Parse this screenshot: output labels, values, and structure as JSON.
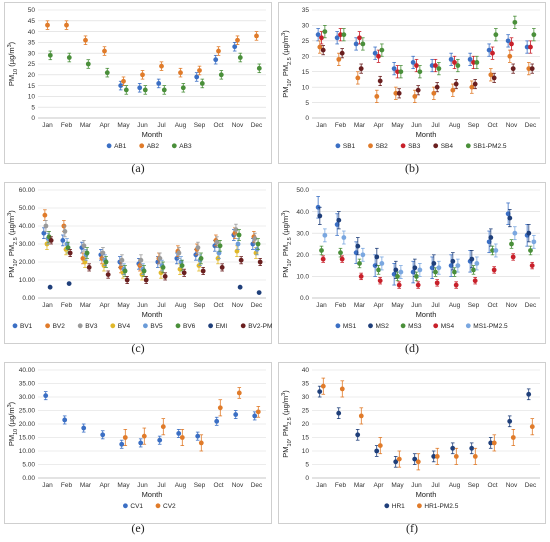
{
  "months": [
    "Jan",
    "Feb",
    "Mar",
    "Apr",
    "May",
    "Jun",
    "Jul",
    "Aug",
    "Sep",
    "Oct",
    "Nov",
    "Dec"
  ],
  "chart_data": [
    {
      "type": "scatter",
      "panel_label": "(a)",
      "xlabel": "Month",
      "ylabel": "PM10 (µg/m3)",
      "ylim": [
        0,
        50
      ],
      "yticks": [
        "0",
        "5",
        "10",
        "15",
        "20",
        "25",
        "30",
        "35",
        "40",
        "45",
        "50"
      ],
      "grid": true,
      "series": [
        {
          "name": "AB1",
          "color": "#3b6fc4",
          "values": [
            null,
            null,
            null,
            null,
            15,
            14,
            16,
            null,
            19,
            27,
            33,
            null
          ],
          "err": [
            null,
            null,
            null,
            null,
            2,
            2,
            2,
            null,
            2,
            2,
            2,
            null
          ]
        },
        {
          "name": "AB2",
          "color": "#e07b2a",
          "values": [
            43,
            43,
            36,
            31,
            17,
            20,
            24,
            21,
            22,
            31,
            36,
            38
          ],
          "err": [
            2,
            2,
            2,
            2,
            2,
            2,
            2,
            2,
            2,
            2,
            2,
            2
          ]
        },
        {
          "name": "AB3",
          "color": "#4a8f3a",
          "values": [
            29,
            28,
            25,
            21,
            13,
            13,
            13,
            14,
            16,
            20,
            28,
            23
          ],
          "err": [
            2,
            2,
            2,
            2,
            2,
            2,
            2,
            2,
            2,
            2,
            2,
            2
          ]
        }
      ]
    },
    {
      "type": "scatter",
      "panel_label": "(b)",
      "xlabel": "Month",
      "ylabel": "PM10, PM2.5 (µg/m3)",
      "ylim": [
        0,
        35
      ],
      "yticks": [
        "0",
        "5",
        "10",
        "15",
        "20",
        "25",
        "30",
        "35"
      ],
      "grid": true,
      "series": [
        {
          "name": "SB1",
          "color": "#3b6fc4",
          "values": [
            27,
            26,
            24,
            21,
            16,
            18,
            17,
            19,
            19,
            22,
            25,
            23
          ],
          "err": [
            2,
            2,
            2,
            2,
            2,
            2,
            2,
            2,
            2,
            2,
            2,
            2
          ]
        },
        {
          "name": "SB2",
          "color": "#e07b2a",
          "values": [
            23,
            19,
            13,
            7,
            8,
            7,
            8,
            9,
            10,
            14,
            20,
            16
          ],
          "err": [
            2,
            2,
            2,
            2,
            2,
            2,
            2,
            2,
            2,
            2,
            2,
            2
          ]
        },
        {
          "name": "SB3",
          "color": "#c8202a",
          "values": [
            26,
            27,
            26,
            20,
            15,
            17,
            17,
            18,
            18,
            21,
            24,
            23
          ],
          "err": [
            2,
            2,
            2,
            2,
            2,
            2,
            2,
            2,
            2,
            2,
            2,
            2
          ]
        },
        {
          "name": "SB4",
          "color": "#6a1f1f",
          "values": [
            22,
            21,
            16,
            12,
            8,
            9,
            10,
            11,
            11,
            13,
            16,
            16
          ],
          "err": [
            1.5,
            1.5,
            1.5,
            1.5,
            1.5,
            1.5,
            1.5,
            1.5,
            1.5,
            1.5,
            1.5,
            1.5
          ]
        },
        {
          "name": "SB1-PM2.5",
          "color": "#4a8f3a",
          "values": [
            28,
            27,
            24,
            22,
            15,
            15,
            16,
            17,
            18,
            27,
            31,
            27
          ],
          "err": [
            2,
            2,
            2,
            2,
            2,
            2,
            2,
            2,
            2,
            2,
            2,
            2
          ]
        }
      ]
    },
    {
      "type": "scatter",
      "panel_label": "(c)",
      "xlabel": "Month",
      "ylabel": "PM10, PM2.5 (µg/m3)",
      "ylim": [
        0,
        60
      ],
      "yticks": [
        "0.00",
        "10.00",
        "20.00",
        "30.00",
        "40.00",
        "50.00",
        "60.00"
      ],
      "grid": true,
      "series": [
        {
          "name": "BV1",
          "color": "#3b6fc4",
          "values": [
            36,
            32,
            28,
            24,
            20,
            19,
            20,
            22,
            24,
            29,
            35,
            30
          ],
          "err": [
            3,
            3,
            3,
            3,
            3,
            3,
            3,
            3,
            3,
            3,
            3,
            3
          ]
        },
        {
          "name": "BV2",
          "color": "#e07b2a",
          "values": [
            46,
            40,
            22,
            22,
            17,
            18,
            22,
            26,
            27,
            32,
            36,
            34
          ],
          "err": [
            3,
            3,
            3,
            3,
            3,
            3,
            3,
            3,
            3,
            3,
            3,
            3
          ]
        },
        {
          "name": "BV3",
          "color": "#9a9a9a",
          "values": [
            40,
            37,
            29,
            25,
            21,
            21,
            22,
            25,
            28,
            31,
            38,
            33
          ],
          "err": [
            3,
            3,
            3,
            3,
            3,
            3,
            3,
            3,
            3,
            3,
            3,
            3
          ]
        },
        {
          "name": "BV4",
          "color": "#e0b82a",
          "values": [
            30,
            27,
            20,
            18,
            14,
            13,
            14,
            16,
            18,
            22,
            26,
            25
          ],
          "err": [
            3,
            3,
            3,
            3,
            3,
            3,
            3,
            3,
            3,
            3,
            3,
            3
          ]
        },
        {
          "name": "BV5",
          "color": "#6a9bd8",
          "values": [
            33,
            30,
            24,
            21,
            16,
            16,
            18,
            20,
            21,
            25,
            30,
            27
          ],
          "err": [
            3,
            3,
            3,
            3,
            3,
            3,
            3,
            3,
            3,
            3,
            3,
            3
          ]
        },
        {
          "name": "BV6",
          "color": "#4a8f3a",
          "values": [
            34,
            28,
            25,
            20,
            15,
            15,
            17,
            18,
            22,
            29,
            35,
            30
          ],
          "err": [
            3,
            3,
            3,
            3,
            3,
            3,
            3,
            3,
            3,
            3,
            3,
            3
          ]
        },
        {
          "name": "EMI",
          "color": "#1f3f7a",
          "values": [
            6,
            8,
            null,
            null,
            null,
            null,
            null,
            null,
            null,
            null,
            6,
            3
          ],
          "err": [
            0,
            0,
            null,
            null,
            null,
            null,
            null,
            null,
            null,
            null,
            0,
            0
          ]
        },
        {
          "name": "BV2-PM2.5",
          "color": "#6a1f1f",
          "values": [
            32,
            25,
            17,
            13,
            10,
            10,
            12,
            14,
            15,
            17,
            21,
            20
          ],
          "err": [
            2,
            2,
            2,
            2,
            2,
            2,
            2,
            2,
            2,
            2,
            2,
            2
          ]
        }
      ]
    },
    {
      "type": "scatter",
      "panel_label": "(d)",
      "xlabel": "Month",
      "ylabel": "PM10, PM2.5 (µg/m3)",
      "ylim": [
        0,
        50
      ],
      "yticks": [
        "0.0",
        "10.0",
        "20.0",
        "30.0",
        "40.0",
        "50.0"
      ],
      "grid": true,
      "series": [
        {
          "name": "MS1",
          "color": "#3b6fc4",
          "values": [
            42,
            34,
            21,
            15,
            11,
            12,
            14,
            15,
            17,
            26,
            39,
            29
          ],
          "err": [
            5,
            5,
            5,
            5,
            5,
            5,
            5,
            5,
            5,
            5,
            5,
            5
          ]
        },
        {
          "name": "MS2",
          "color": "#1f3f7a",
          "values": [
            38,
            36,
            24,
            19,
            13,
            14,
            16,
            17,
            18,
            28,
            37,
            30
          ],
          "err": [
            4,
            4,
            4,
            4,
            4,
            4,
            4,
            4,
            4,
            4,
            4,
            4
          ]
        },
        {
          "name": "MS3",
          "color": "#4a8f3a",
          "values": [
            22,
            21,
            16,
            13,
            10,
            10,
            12,
            12,
            13,
            22,
            25,
            22
          ],
          "err": [
            2,
            2,
            2,
            2,
            2,
            2,
            2,
            2,
            2,
            2,
            2,
            2
          ]
        },
        {
          "name": "MS4",
          "color": "#c8202a",
          "values": [
            18,
            18,
            10,
            8,
            6,
            6,
            7,
            6,
            8,
            13,
            19,
            15
          ],
          "err": [
            1.5,
            1.5,
            1.5,
            1.5,
            1.5,
            1.5,
            1.5,
            1.5,
            1.5,
            1.5,
            1.5,
            1.5
          ]
        },
        {
          "name": "MS1-PM2.5",
          "color": "#7aa7e0",
          "values": [
            29,
            28,
            20,
            16,
            12,
            13,
            14,
            15,
            16,
            22,
            30,
            26
          ],
          "err": [
            3,
            3,
            3,
            3,
            3,
            3,
            3,
            3,
            3,
            3,
            3,
            3
          ]
        }
      ]
    },
    {
      "type": "scatter",
      "panel_label": "(e)",
      "xlabel": "Month",
      "ylabel": "PM10 (µg/m3)",
      "ylim": [
        0,
        40
      ],
      "yticks": [
        "0.00",
        "5.00",
        "10.00",
        "15.00",
        "20.00",
        "25.00",
        "30.00",
        "35.00",
        "40.00"
      ],
      "grid": true,
      "series": [
        {
          "name": "CV1",
          "color": "#3b6fc4",
          "values": [
            30.5,
            21.5,
            18.5,
            16,
            12.5,
            13,
            14,
            16.5,
            15.5,
            21,
            23.5,
            23
          ],
          "err": [
            1.5,
            1.5,
            1.5,
            1.5,
            1.5,
            1.5,
            1.5,
            1.5,
            1.5,
            1.5,
            1.5,
            1.5
          ]
        },
        {
          "name": "CV2",
          "color": "#e07b2a",
          "values": [
            null,
            null,
            null,
            null,
            15,
            15.5,
            19,
            15,
            13,
            26,
            31.5,
            24.5
          ],
          "err": [
            null,
            null,
            null,
            null,
            3,
            3,
            3,
            3,
            3,
            3,
            2,
            2
          ]
        }
      ]
    },
    {
      "type": "scatter",
      "panel_label": "(f)",
      "xlabel": "Month",
      "ylabel": "PM10, PM2.5 (µg/m3)",
      "ylim": [
        0,
        40
      ],
      "yticks": [
        "0",
        "5",
        "10",
        "15",
        "20",
        "25",
        "30",
        "35",
        "40"
      ],
      "grid": true,
      "series": [
        {
          "name": "HR1",
          "color": "#1f3f7a",
          "values": [
            32,
            24,
            16,
            10,
            6,
            7,
            8,
            11,
            11,
            13,
            21,
            31
          ],
          "err": [
            2,
            2,
            2,
            2,
            2,
            2,
            2,
            2,
            2,
            2,
            2,
            2
          ]
        },
        {
          "name": "HR1-PM2.5",
          "color": "#e07b2a",
          "values": [
            34,
            33,
            23,
            12,
            7,
            6,
            8,
            8,
            8,
            13,
            15,
            19
          ],
          "err": [
            3,
            3,
            3,
            3,
            3,
            3,
            3,
            3,
            3,
            3,
            3,
            3
          ]
        }
      ]
    }
  ]
}
